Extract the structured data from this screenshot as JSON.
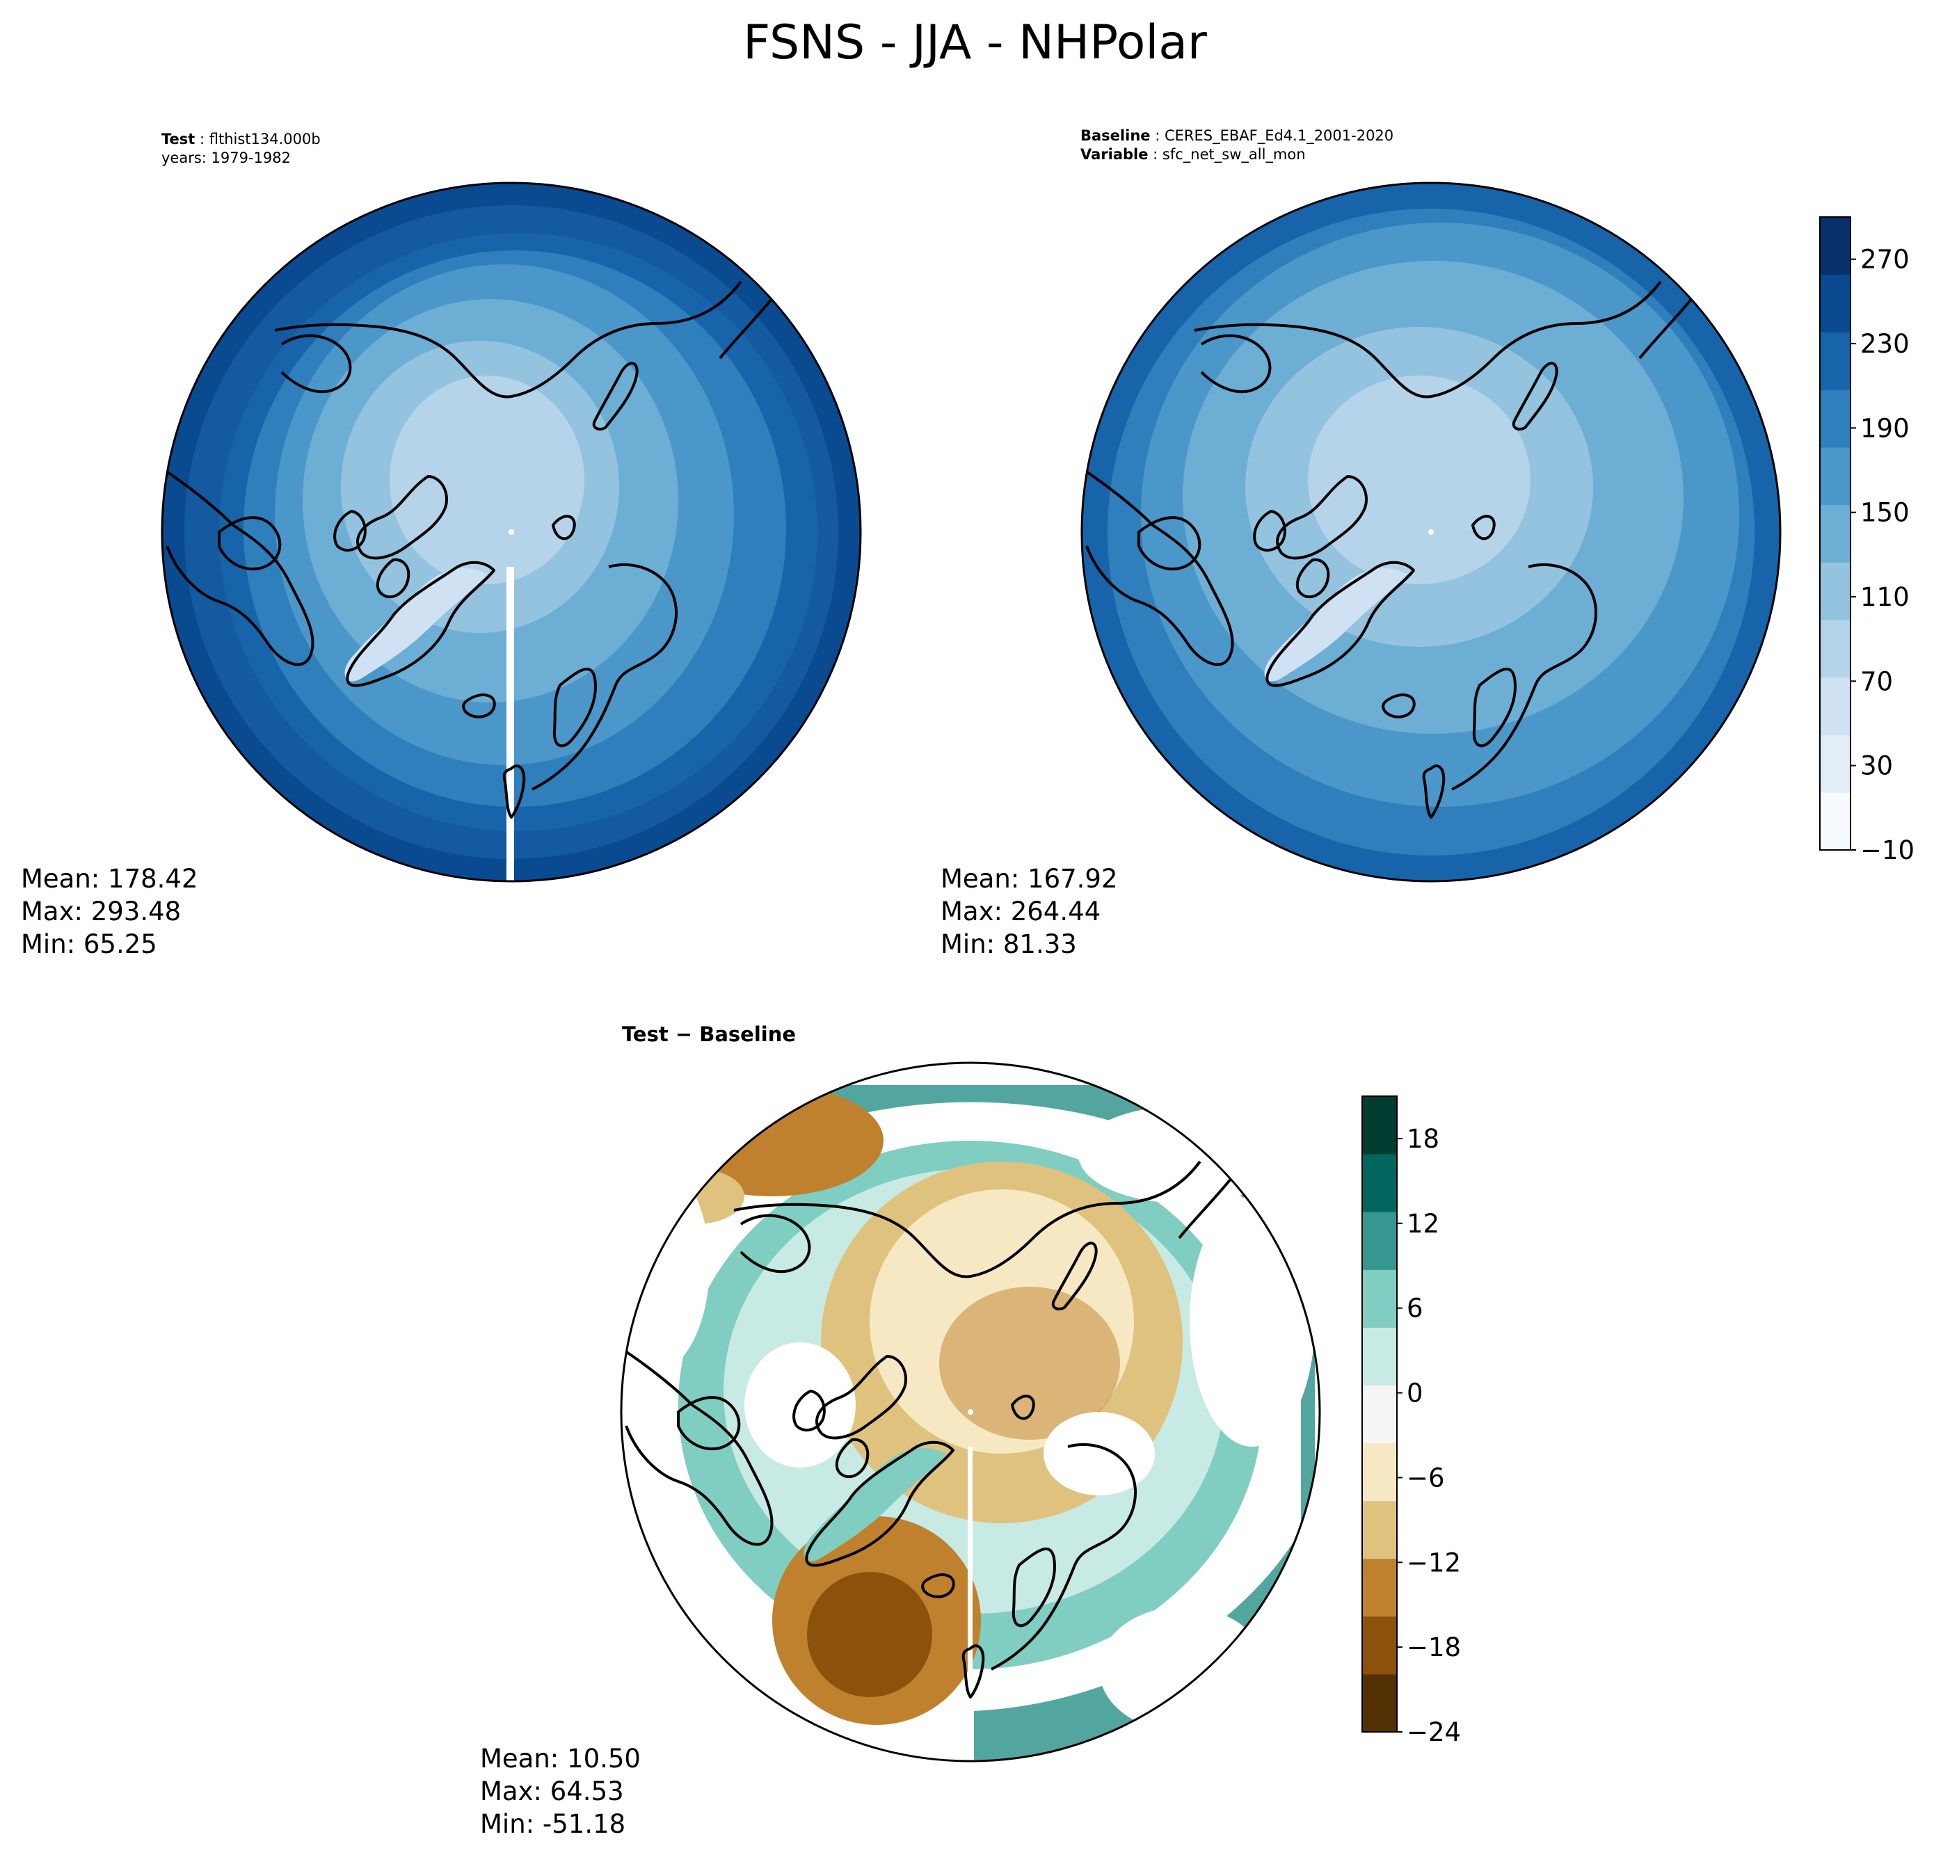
{
  "figure": {
    "title": "FSNS - JJA - NHPolar"
  },
  "panels": {
    "test": {
      "label_key": "Test",
      "label_value": "flthist134.000b",
      "years_line": "years: 1979-1982",
      "stats": {
        "mean": "Mean: 178.42",
        "max": "Max: 293.48",
        "min": "Min: 65.25"
      }
    },
    "baseline": {
      "label_key": "Baseline",
      "label_value": "CERES_EBAF_Ed4.1_2001-2020",
      "variable_key": "Variable",
      "variable_value": "sfc_net_sw_all_mon",
      "stats": {
        "mean": "Mean: 167.92",
        "max": "Max: 264.44",
        "min": "Min: 81.33"
      }
    },
    "diff": {
      "title_test": "Test",
      "title_sep": " − ",
      "title_base": "Baseline",
      "stats": {
        "mean": "Mean: 10.50",
        "max": "Max: 64.53",
        "min": "Min: -51.18"
      }
    }
  },
  "colorbars": {
    "main": {
      "colormap": "Blues",
      "ticks": [
        "−10",
        "30",
        "70",
        "110",
        "150",
        "190",
        "230",
        "270"
      ],
      "range": [
        -10,
        290
      ],
      "colors": [
        "#f7fbff",
        "#e3eef9",
        "#cfe1f2",
        "#b5d4e9",
        "#93c3df",
        "#6daed5",
        "#4b97c9",
        "#2f7fbc",
        "#1864aa",
        "#0a4a90",
        "#08306b"
      ]
    },
    "diff": {
      "colormap": "BrBG",
      "ticks": [
        "−24",
        "−18",
        "−12",
        "−6",
        "0",
        "6",
        "12",
        "18"
      ],
      "range": [
        -24,
        21
      ],
      "colors": [
        "#543005",
        "#8c510a",
        "#bf812d",
        "#dfc27d",
        "#f6e8c3",
        "#f5f5f5",
        "#c7eae5",
        "#80cdc1",
        "#35978f",
        "#01665e",
        "#003c30"
      ]
    }
  }
}
